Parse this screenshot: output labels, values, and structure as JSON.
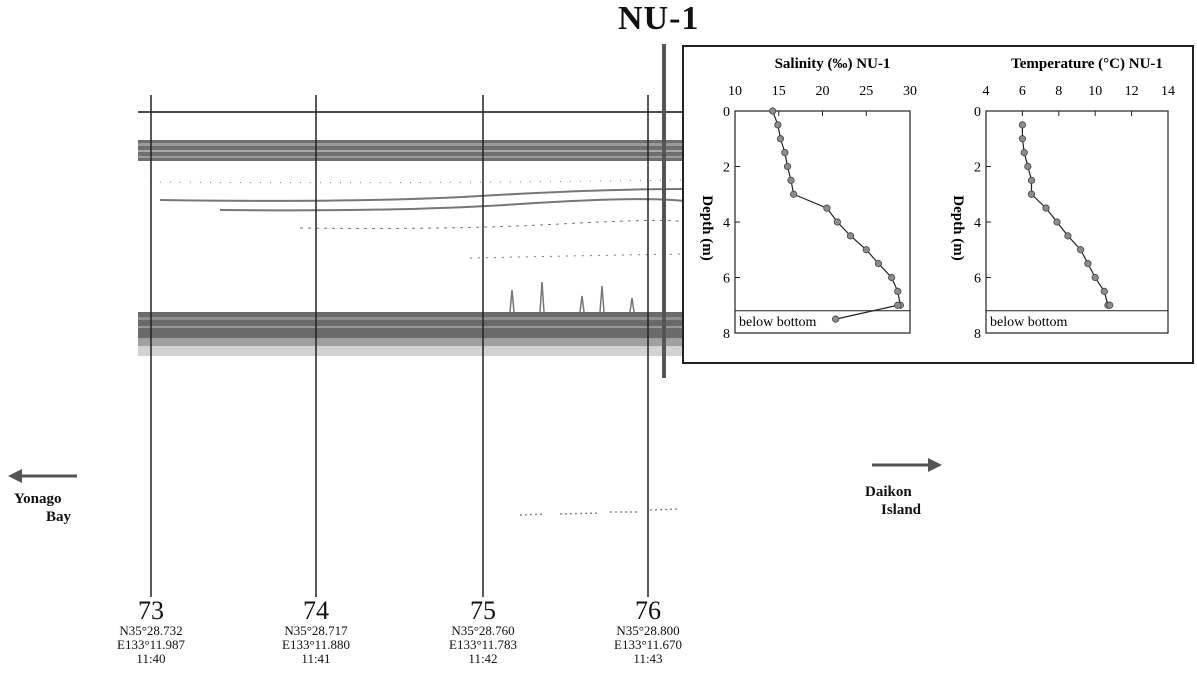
{
  "site_label": "NU-1",
  "direction_left": {
    "line1": "Yonago",
    "line2": "Bay"
  },
  "direction_right": {
    "line1": "Daikon",
    "line2": "Island"
  },
  "station_marks": [
    {
      "num": "73",
      "lat": "N35°28.732",
      "lon": "E133°11.987",
      "time": "11:40"
    },
    {
      "num": "74",
      "lat": "N35°28.717",
      "lon": "E133°11.880",
      "time": "11:41"
    },
    {
      "num": "75",
      "lat": "N35°28.760",
      "lon": "E133°11.783",
      "time": "11:42"
    },
    {
      "num": "76",
      "lat": "N35°28.800",
      "lon": "E133°11.670",
      "time": "11:43"
    }
  ],
  "chart_data": [
    {
      "type": "line",
      "title": "Salinity (‰) NU-1",
      "ylabel": "Depth (m)",
      "xlim": [
        10,
        30
      ],
      "ylim": [
        0,
        8
      ],
      "y_inverted": true,
      "x_ticks": [
        "10",
        "15",
        "20",
        "25",
        "30"
      ],
      "y_ticks": [
        "0",
        "2",
        "4",
        "6",
        "8"
      ],
      "bottom_label": "below bottom",
      "bottom_depth": 7.2,
      "series": [
        {
          "x": [
            14.3,
            14.9,
            15.2,
            15.7,
            16.0,
            16.4,
            16.7,
            20.5,
            21.7,
            23.2,
            25.0,
            26.4,
            27.9,
            28.6,
            28.9,
            28.6,
            21.5
          ],
          "y": [
            0.0,
            0.5,
            1.0,
            1.5,
            2.0,
            2.5,
            3.0,
            3.5,
            4.0,
            4.5,
            5.0,
            5.5,
            6.0,
            6.5,
            7.0,
            7.0,
            7.5
          ]
        }
      ]
    },
    {
      "type": "line",
      "title": "Temperature (°C) NU-1",
      "ylabel": "Depth (m)",
      "xlim": [
        4,
        14
      ],
      "ylim": [
        0,
        8
      ],
      "y_inverted": true,
      "x_ticks": [
        "4",
        "6",
        "8",
        "10",
        "12",
        "14"
      ],
      "y_ticks": [
        "0",
        "2",
        "4",
        "6",
        "8"
      ],
      "bottom_label": "below bottom",
      "bottom_depth": 7.2,
      "series": [
        {
          "x": [
            6.0,
            6.0,
            6.1,
            6.3,
            6.5,
            6.5,
            6.5,
            7.3,
            7.9,
            8.5,
            9.2,
            9.6,
            10.0,
            10.5,
            10.7,
            10.8
          ],
          "y": [
            0.5,
            1.0,
            1.5,
            2.0,
            2.5,
            3.0,
            3.0,
            3.5,
            4.0,
            4.5,
            5.0,
            5.5,
            6.0,
            6.5,
            7.0,
            7.0
          ]
        }
      ]
    }
  ]
}
